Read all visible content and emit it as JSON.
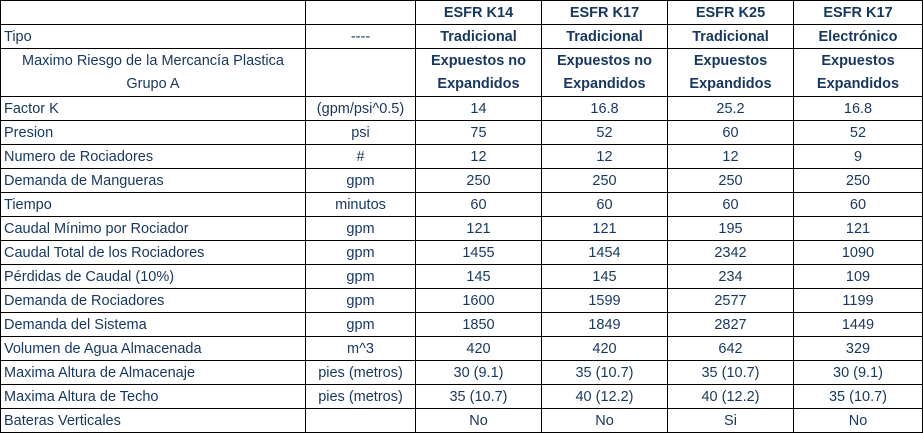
{
  "columns": [
    {
      "name": "ESFR K14",
      "tipo": "Tradicional",
      "riesgo": [
        "Expuestos no",
        "Expandidos"
      ]
    },
    {
      "name": "ESFR K17",
      "tipo": "Tradicional",
      "riesgo": [
        "Expuestos no",
        "Expandidos"
      ]
    },
    {
      "name": "ESFR K25",
      "tipo": "Tradicional",
      "riesgo": [
        "Expuestos",
        "Expandidos"
      ]
    },
    {
      "name": "ESFR K17",
      "tipo": "Electrónico",
      "riesgo": [
        "Expuestos",
        "Expandidos"
      ]
    }
  ],
  "tipo_row": {
    "label": "Tipo",
    "unit": "----"
  },
  "riesgo_row": {
    "label": [
      "Maximo Riesgo de la Mercancía Plastica",
      "Grupo A"
    ],
    "unit": ""
  },
  "rows": [
    {
      "label": "Factor K",
      "unit": "(gpm/psi^0.5)",
      "values": [
        "14",
        "16.8",
        "25.2",
        "16.8"
      ]
    },
    {
      "label": "Presion",
      "unit": "psi",
      "values": [
        "75",
        "52",
        "60",
        "52"
      ]
    },
    {
      "label": "Numero de Rociadores",
      "unit": "#",
      "values": [
        "12",
        "12",
        "12",
        "9"
      ]
    },
    {
      "label": "Demanda de Mangueras",
      "unit": "gpm",
      "values": [
        "250",
        "250",
        "250",
        "250"
      ]
    },
    {
      "label": "Tiempo",
      "unit": "minutos",
      "values": [
        "60",
        "60",
        "60",
        "60"
      ]
    },
    {
      "label": "Caudal Mínimo por Rociador",
      "unit": "gpm",
      "values": [
        "121",
        "121",
        "195",
        "121"
      ]
    },
    {
      "label": "Caudal Total de los Rociadores",
      "unit": "gpm",
      "values": [
        "1455",
        "1454",
        "2342",
        "1090"
      ]
    },
    {
      "label": "Pérdidas de Caudal (10%)",
      "unit": "gpm",
      "values": [
        "145",
        "145",
        "234",
        "109"
      ]
    },
    {
      "label": "Demanda de Rociadores",
      "unit": "gpm",
      "values": [
        "1600",
        "1599",
        "2577",
        "1199"
      ]
    },
    {
      "label": "Demanda del Sistema",
      "unit": "gpm",
      "values": [
        "1850",
        "1849",
        "2827",
        "1449"
      ]
    },
    {
      "label": "Volumen de Agua Almacenada",
      "unit": "m^3",
      "values": [
        "420",
        "420",
        "642",
        "329"
      ]
    },
    {
      "label": "Maxima Altura de Almacenaje",
      "unit": "pies (metros)",
      "values": [
        "30 (9.1)",
        "35 (10.7)",
        "35 (10.7)",
        "30 (9.1)"
      ]
    },
    {
      "label": "Maxima Altura de Techo",
      "unit": "pies (metros)",
      "values": [
        "35 (10.7)",
        "40 (12.2)",
        "40 (12.2)",
        "35 (10.7)"
      ]
    },
    {
      "label": "Bateras Verticales",
      "unit": "",
      "values": [
        "No",
        "No",
        "Si",
        "No"
      ]
    }
  ]
}
